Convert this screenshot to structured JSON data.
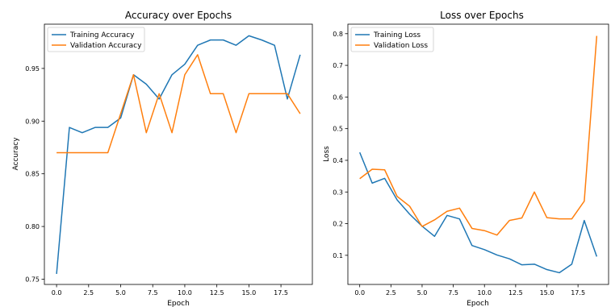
{
  "chart_data": [
    {
      "type": "line",
      "title": "Accuracy over Epochs",
      "xlabel": "Epoch",
      "ylabel": "Accuracy",
      "xlim": [
        -0.95,
        19.95
      ],
      "ylim": [
        0.745,
        0.992
      ],
      "xticks": [
        0.0,
        2.5,
        5.0,
        7.5,
        10.0,
        12.5,
        15.0,
        17.5
      ],
      "xtick_labels": [
        "0.0",
        "2.5",
        "5.0",
        "7.5",
        "10.0",
        "12.5",
        "15.0",
        "17.5"
      ],
      "yticks": [
        0.75,
        0.8,
        0.85,
        0.9,
        0.95
      ],
      "ytick_labels": [
        "0.75",
        "0.80",
        "0.85",
        "0.90",
        "0.95"
      ],
      "grid": false,
      "legend_position": "top-left",
      "x": [
        0,
        1,
        2,
        3,
        4,
        5,
        6,
        7,
        8,
        9,
        10,
        11,
        12,
        13,
        14,
        15,
        16,
        17,
        18,
        19
      ],
      "series": [
        {
          "name": "Training Accuracy",
          "color": "#1f77b4",
          "values": [
            0.755,
            0.894,
            0.889,
            0.894,
            0.894,
            0.903,
            0.944,
            0.935,
            0.921,
            0.944,
            0.954,
            0.972,
            0.977,
            0.977,
            0.972,
            0.981,
            0.977,
            0.972,
            0.921,
            0.963
          ]
        },
        {
          "name": "Validation Accuracy",
          "color": "#ff7f0e",
          "values": [
            0.87,
            0.87,
            0.87,
            0.87,
            0.87,
            0.907,
            0.944,
            0.889,
            0.926,
            0.889,
            0.944,
            0.963,
            0.926,
            0.926,
            0.889,
            0.926,
            0.926,
            0.926,
            0.926,
            0.907
          ]
        }
      ]
    },
    {
      "type": "line",
      "title": "Loss over Epochs",
      "xlabel": "Epoch",
      "ylabel": "Loss",
      "xlim": [
        -0.95,
        19.95
      ],
      "ylim": [
        0.008,
        0.83
      ],
      "xticks": [
        0.0,
        2.5,
        5.0,
        7.5,
        10.0,
        12.5,
        15.0,
        17.5
      ],
      "xtick_labels": [
        "0.0",
        "2.5",
        "5.0",
        "7.5",
        "10.0",
        "12.5",
        "15.0",
        "17.5"
      ],
      "yticks": [
        0.1,
        0.2,
        0.3,
        0.4,
        0.5,
        0.6,
        0.7,
        0.8
      ],
      "ytick_labels": [
        "0.1",
        "0.2",
        "0.3",
        "0.4",
        "0.5",
        "0.6",
        "0.7",
        "0.8"
      ],
      "grid": false,
      "legend_position": "top-left",
      "x": [
        0,
        1,
        2,
        3,
        4,
        5,
        6,
        7,
        8,
        9,
        10,
        11,
        12,
        13,
        14,
        15,
        16,
        17,
        18,
        19
      ],
      "series": [
        {
          "name": "Training Loss",
          "color": "#1f77b4",
          "values": [
            0.425,
            0.328,
            0.343,
            0.275,
            0.23,
            0.192,
            0.16,
            0.226,
            0.215,
            0.131,
            0.118,
            0.101,
            0.089,
            0.07,
            0.072,
            0.055,
            0.045,
            0.072,
            0.21,
            0.096
          ]
        },
        {
          "name": "Validation Loss",
          "color": "#ff7f0e",
          "values": [
            0.342,
            0.372,
            0.37,
            0.286,
            0.255,
            0.191,
            0.212,
            0.239,
            0.249,
            0.185,
            0.178,
            0.164,
            0.21,
            0.218,
            0.3,
            0.219,
            0.215,
            0.215,
            0.271,
            0.793
          ]
        }
      ]
    }
  ]
}
